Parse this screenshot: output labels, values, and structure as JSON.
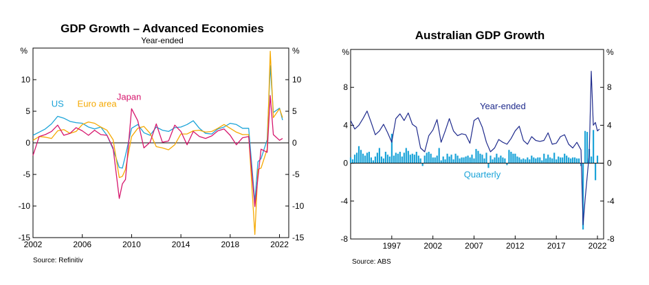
{
  "chart_data": [
    {
      "type": "line",
      "title": "GDP Growth – Advanced Economies",
      "subtitle": "Year-ended",
      "unit_left": "%",
      "unit_right": "%",
      "source": "Source:   Refinitiv",
      "xlim": [
        2002,
        2022.75
      ],
      "ylim": [
        -15,
        15
      ],
      "yticks": [
        10,
        5,
        0,
        -5,
        -10,
        -15
      ],
      "ytick_labels": [
        "10",
        "5",
        "0",
        "-5",
        "-10",
        "-15"
      ],
      "xticks": [
        2002,
        2006,
        2010,
        2014,
        2018,
        2022
      ],
      "xtick_labels": [
        "2002",
        "2006",
        "2010",
        "2014",
        "2018",
        "2022"
      ],
      "grid": false,
      "colors": {
        "US": "#1aa3d8",
        "Euro area": "#f5a800",
        "Japan": "#d6156c"
      },
      "series": [
        {
          "name": "US",
          "x": [
            2002,
            2002.5,
            2003,
            2003.5,
            2004,
            2004.5,
            2005,
            2005.5,
            2006,
            2006.5,
            2007,
            2007.5,
            2008,
            2008.5,
            2009,
            2009.25,
            2009.5,
            2010,
            2010.5,
            2011,
            2011.5,
            2012,
            2012.5,
            2013,
            2013.5,
            2014,
            2014.5,
            2015,
            2015.5,
            2016,
            2016.5,
            2017,
            2017.5,
            2018,
            2018.5,
            2019,
            2019.5,
            2020,
            2020.25,
            2020.5,
            2021,
            2021.25,
            2021.5,
            2022,
            2022.25
          ],
          "values": [
            1.2,
            1.7,
            2.2,
            3.0,
            4.2,
            3.9,
            3.4,
            3.2,
            3.1,
            2.5,
            2.2,
            2.5,
            1.2,
            -1.0,
            -3.9,
            -4.0,
            -2.0,
            2.3,
            2.9,
            1.6,
            1.2,
            2.5,
            2.0,
            1.8,
            2.4,
            2.5,
            2.9,
            3.5,
            2.3,
            1.5,
            1.4,
            2.2,
            2.5,
            3.1,
            2.9,
            2.3,
            2.3,
            -9.3,
            -3.0,
            -2.5,
            0.5,
            12.2,
            4.8,
            5.5,
            3.6
          ]
        },
        {
          "name": "Euro area",
          "x": [
            2002,
            2002.5,
            2003,
            2003.5,
            2004,
            2004.5,
            2005,
            2005.5,
            2006,
            2006.5,
            2007,
            2007.5,
            2008,
            2008.5,
            2009,
            2009.25,
            2009.5,
            2010,
            2010.5,
            2011,
            2011.5,
            2012,
            2012.5,
            2013,
            2013.5,
            2014,
            2014.5,
            2015,
            2015.5,
            2016,
            2016.5,
            2017,
            2017.5,
            2018,
            2018.5,
            2019,
            2019.5,
            2020,
            2020.25,
            2020.5,
            2021,
            2021.25,
            2021.5,
            2022,
            2022.25
          ],
          "values": [
            0.4,
            1.0,
            0.9,
            0.7,
            1.9,
            2.1,
            1.5,
            1.8,
            2.9,
            3.3,
            3.1,
            2.5,
            2.0,
            0.5,
            -5.5,
            -5.3,
            -4.2,
            1.0,
            2.3,
            2.6,
            1.5,
            -0.6,
            -0.8,
            -1.1,
            -0.3,
            1.4,
            1.4,
            1.9,
            2.0,
            1.7,
            1.8,
            2.3,
            2.9,
            2.3,
            1.7,
            1.3,
            1.3,
            -14.5,
            -4.2,
            -4.0,
            -1.0,
            14.5,
            4.0,
            5.4,
            4.0
          ]
        },
        {
          "name": "Japan",
          "x": [
            2002,
            2002.5,
            2003,
            2003.5,
            2004,
            2004.5,
            2005,
            2005.5,
            2006,
            2006.5,
            2007,
            2007.5,
            2008,
            2008.5,
            2009,
            2009.25,
            2009.5,
            2010,
            2010.5,
            2011,
            2011.5,
            2012,
            2012.5,
            2013,
            2013.5,
            2014,
            2014.5,
            2015,
            2015.5,
            2016,
            2016.5,
            2017,
            2017.5,
            2018,
            2018.5,
            2019,
            2019.5,
            2020,
            2020.25,
            2020.5,
            2021,
            2021.25,
            2021.5,
            2022,
            2022.25
          ],
          "values": [
            -2.0,
            1.0,
            1.3,
            1.8,
            2.8,
            1.2,
            1.5,
            2.4,
            1.9,
            1.2,
            2.0,
            1.3,
            1.2,
            -0.8,
            -8.8,
            -6.5,
            -5.8,
            5.4,
            3.5,
            -0.8,
            0.1,
            3.0,
            0.1,
            0.3,
            2.8,
            1.8,
            -0.3,
            1.8,
            1.0,
            0.7,
            1.1,
            1.9,
            2.2,
            1.2,
            -0.3,
            0.8,
            1.0,
            -10.1,
            -5.5,
            -1.0,
            -1.5,
            7.5,
            1.3,
            0.4,
            0.7
          ]
        }
      ],
      "annotations": [
        {
          "text": "US",
          "series": "US"
        },
        {
          "text": "Euro area",
          "series": "Euro area"
        },
        {
          "text": "Japan",
          "series": "Japan"
        }
      ]
    },
    {
      "type": "bar+line",
      "title": "Australian GDP Growth",
      "unit_left": "%",
      "unit_right": "%",
      "source": "Source:   ABS",
      "xlim": [
        1992,
        2022.75
      ],
      "ylim": [
        -8,
        12
      ],
      "yticks": [
        8,
        4,
        0,
        -4,
        -8
      ],
      "ytick_labels": [
        "8",
        "4",
        "0",
        "-4",
        "-8"
      ],
      "xticks": [
        1997,
        2002,
        2007,
        2012,
        2017,
        2022
      ],
      "xtick_labels": [
        "1997",
        "2002",
        "2007",
        "2012",
        "2017",
        "2022"
      ],
      "grid": false,
      "colors": {
        "Year-ended": "#1e2a8c",
        "Quarterly": "#1aa3d8"
      },
      "series": [
        {
          "name": "Year-ended",
          "x": [
            1992,
            1992.5,
            1993,
            1993.5,
            1994,
            1994.5,
            1995,
            1995.5,
            1996,
            1996.5,
            1997,
            1997.5,
            1998,
            1998.5,
            1999,
            1999.5,
            2000,
            2000.5,
            2001,
            2001.5,
            2002,
            2002.5,
            2003,
            2003.5,
            2004,
            2004.5,
            2005,
            2005.5,
            2006,
            2006.5,
            2007,
            2007.5,
            2008,
            2008.5,
            2009,
            2009.5,
            2010,
            2010.5,
            2011,
            2011.5,
            2012,
            2012.5,
            2013,
            2013.5,
            2014,
            2014.5,
            2015,
            2015.5,
            2016,
            2016.5,
            2017,
            2017.5,
            2018,
            2018.5,
            2019,
            2019.5,
            2020,
            2020.25,
            2020.5,
            2021,
            2021.25,
            2021.5,
            2021.75,
            2022,
            2022.25
          ],
          "values": [
            4.5,
            3.6,
            4.0,
            4.7,
            5.5,
            4.3,
            3.0,
            3.4,
            4.1,
            3.2,
            2.2,
            4.7,
            5.2,
            4.5,
            5.3,
            4.1,
            3.8,
            1.6,
            1.2,
            2.9,
            3.5,
            4.6,
            2.2,
            3.4,
            4.7,
            3.4,
            2.9,
            3.1,
            3.0,
            2.1,
            4.5,
            4.8,
            3.8,
            2.2,
            1.2,
            1.6,
            2.5,
            2.2,
            2.0,
            2.6,
            3.4,
            3.9,
            2.4,
            2.0,
            2.8,
            2.4,
            2.3,
            2.4,
            3.2,
            2.0,
            2.1,
            2.8,
            3.0,
            2.0,
            1.6,
            2.2,
            1.4,
            -6.5,
            -3.8,
            1.0,
            9.7,
            4.0,
            4.3,
            3.4,
            3.6
          ]
        },
        {
          "name": "Quarterly",
          "x": [
            1992,
            1992.25,
            1992.5,
            1992.75,
            1993,
            1993.25,
            1993.5,
            1993.75,
            1994,
            1994.25,
            1994.5,
            1994.75,
            1995,
            1995.25,
            1995.5,
            1995.75,
            1996,
            1996.25,
            1996.5,
            1996.75,
            1997,
            1997.25,
            1997.5,
            1997.75,
            1998,
            1998.25,
            1998.5,
            1998.75,
            1999,
            1999.25,
            1999.5,
            1999.75,
            2000,
            2000.25,
            2000.5,
            2000.75,
            2001,
            2001.25,
            2001.5,
            2001.75,
            2002,
            2002.25,
            2002.5,
            2002.75,
            2003,
            2003.25,
            2003.5,
            2003.75,
            2004,
            2004.25,
            2004.5,
            2004.75,
            2005,
            2005.25,
            2005.5,
            2005.75,
            2006,
            2006.25,
            2006.5,
            2006.75,
            2007,
            2007.25,
            2007.5,
            2007.75,
            2008,
            2008.25,
            2008.5,
            2008.75,
            2009,
            2009.25,
            2009.5,
            2009.75,
            2010,
            2010.25,
            2010.5,
            2010.75,
            2011,
            2011.25,
            2011.5,
            2011.75,
            2012,
            2012.25,
            2012.5,
            2012.75,
            2013,
            2013.25,
            2013.5,
            2013.75,
            2014,
            2014.25,
            2014.5,
            2014.75,
            2015,
            2015.25,
            2015.5,
            2015.75,
            2016,
            2016.25,
            2016.5,
            2016.75,
            2017,
            2017.25,
            2017.5,
            2017.75,
            2018,
            2018.25,
            2018.5,
            2018.75,
            2019,
            2019.25,
            2019.5,
            2019.75,
            2020,
            2020.25,
            2020.5,
            2020.75,
            2021,
            2021.25,
            2021.5,
            2021.75,
            2022
          ],
          "values": [
            0.6,
            0.4,
            0.9,
            1.1,
            1.8,
            1.4,
            1.0,
            0.8,
            1.1,
            1.2,
            0.6,
            0.3,
            0.7,
            1.1,
            1.6,
            0.7,
            0.5,
            1.2,
            0.9,
            0.7,
            3.1,
            0.8,
            1.1,
            1.0,
            1.2,
            0.7,
            1.1,
            1.6,
            1.3,
            0.9,
            1.0,
            0.9,
            1.2,
            0.8,
            0.5,
            -0.3,
            0.8,
            1.1,
            1.2,
            1.0,
            0.6,
            0.6,
            0.8,
            1.6,
            0.3,
            0.7,
            0.4,
            1.0,
            0.7,
            0.9,
            0.4,
            1.0,
            0.8,
            0.5,
            0.6,
            0.6,
            0.7,
            0.8,
            0.6,
            0.9,
            0.5,
            1.5,
            1.3,
            1.0,
            0.9,
            0.5,
            1.1,
            -0.5,
            0.8,
            0.4,
            0.6,
            1.0,
            0.6,
            0.8,
            0.6,
            0.5,
            -0.2,
            1.4,
            1.2,
            1.0,
            1.0,
            0.7,
            0.6,
            0.4,
            0.5,
            0.4,
            0.6,
            0.4,
            0.8,
            0.6,
            0.5,
            0.6,
            0.6,
            0.3,
            1.0,
            0.5,
            0.9,
            0.6,
            0.5,
            1.1,
            0.4,
            0.7,
            0.6,
            0.6,
            1.0,
            0.8,
            0.6,
            0.5,
            0.6,
            0.6,
            0.5,
            0.5,
            -0.3,
            -7.0,
            3.4,
            3.3,
            1.5,
            0.7,
            3.5,
            -1.8,
            0.8
          ]
        }
      ],
      "annotations": [
        {
          "text": "Year-ended",
          "series": "Year-ended"
        },
        {
          "text": "Quarterly",
          "series": "Quarterly"
        }
      ]
    }
  ]
}
